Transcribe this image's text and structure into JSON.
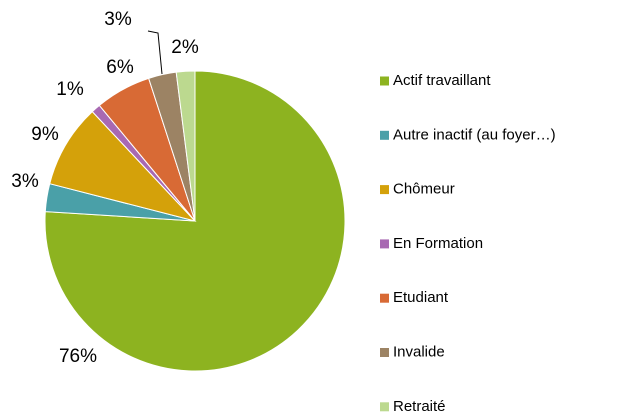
{
  "chart_data": {
    "type": "pie",
    "categories": [
      "Actif travaillant",
      "Autre inactif (au foyer…)",
      "Chômeur",
      "En Formation",
      "Etudiant",
      "Invalide",
      "Retraité"
    ],
    "values": [
      76,
      3,
      9,
      1,
      6,
      3,
      2
    ],
    "value_labels": [
      "76%",
      "3%",
      "9%",
      "1%",
      "6%",
      "3%",
      "2%"
    ],
    "colors": [
      "#8db320",
      "#4aa0a8",
      "#d4a10a",
      "#a869b2",
      "#d86a35",
      "#9c8364",
      "#bcd98f"
    ],
    "legend": "right"
  }
}
